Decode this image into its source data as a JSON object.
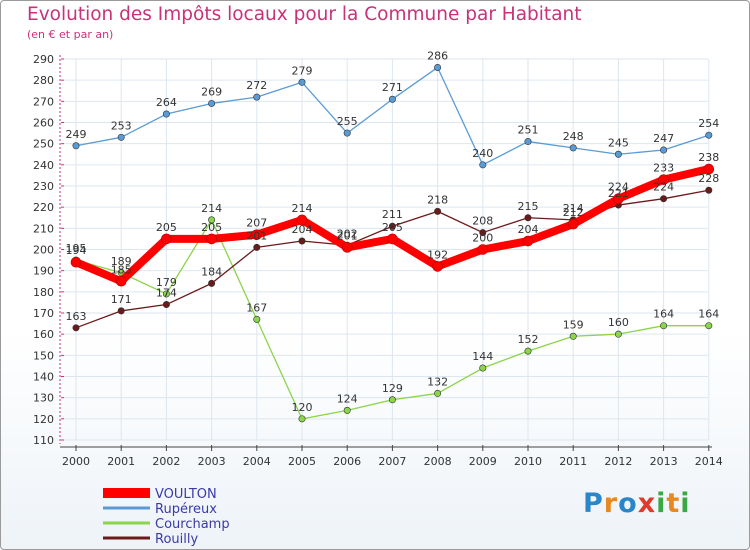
{
  "header": {
    "title": "Evolution des Impôts locaux pour la Commune par Habitant",
    "subtitle": "(en € et par an)"
  },
  "logo_text": "Proxiti",
  "chart_data": {
    "type": "line",
    "title": "Evolution des Impôts locaux pour la Commune par Habitant",
    "subtitle": "(en € et par an)",
    "x": [
      "2000",
      "2001",
      "2002",
      "2003",
      "2004",
      "2005",
      "2006",
      "2007",
      "2008",
      "2009",
      "2010",
      "2011",
      "2012",
      "2013",
      "2014"
    ],
    "ylim": [
      110,
      290
    ],
    "yticks": [
      110,
      120,
      130,
      140,
      150,
      160,
      170,
      180,
      190,
      200,
      210,
      220,
      230,
      240,
      250,
      260,
      270,
      280,
      290
    ],
    "grid": true,
    "legend_position": "bottom-left",
    "series": [
      {
        "name": "VOULTON",
        "color": "#ff0000",
        "values": [
          194,
          185,
          205,
          205,
          207,
          214,
          201,
          205,
          192,
          200,
          204,
          212,
          224,
          233,
          238
        ]
      },
      {
        "name": "Rupéreux",
        "color": "#5b9bd5",
        "values": [
          249,
          253,
          264,
          269,
          272,
          279,
          255,
          271,
          286,
          240,
          251,
          248,
          245,
          247,
          254
        ]
      },
      {
        "name": "Courchamp",
        "color": "#8ad54a",
        "values": [
          195,
          189,
          179,
          214,
          167,
          120,
          124,
          129,
          132,
          144,
          152,
          159,
          160,
          164,
          164
        ]
      },
      {
        "name": "Rouilly",
        "color": "#6b1a1a",
        "values": [
          163,
          171,
          174,
          184,
          201,
          204,
          202,
          211,
          218,
          208,
          215,
          214,
          221,
          224,
          228
        ]
      }
    ]
  }
}
